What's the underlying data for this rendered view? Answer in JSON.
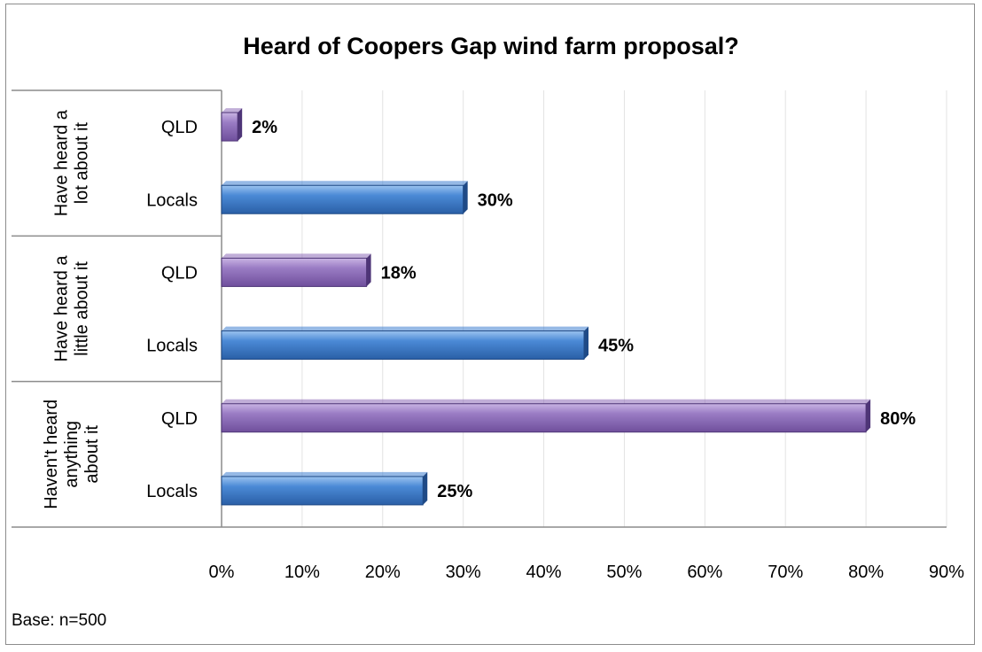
{
  "chart_data": {
    "type": "bar",
    "orientation": "horizontal",
    "title": "Heard of Coopers Gap wind farm proposal?",
    "xlim": [
      0,
      90
    ],
    "x_ticks": [
      "0%",
      "10%",
      "20%",
      "30%",
      "40%",
      "50%",
      "60%",
      "70%",
      "80%",
      "90%"
    ],
    "grid": true,
    "groups": [
      {
        "label_lines": [
          "Have heard a",
          "lot about it"
        ],
        "bars": [
          {
            "category": "QLD",
            "value": 2,
            "label": "2%",
            "color": "#8e6bb8"
          },
          {
            "category": "Locals",
            "value": 30,
            "label": "30%",
            "color": "#3f7fcf"
          }
        ]
      },
      {
        "label_lines": [
          "Have heard a",
          "little about it"
        ],
        "bars": [
          {
            "category": "QLD",
            "value": 18,
            "label": "18%",
            "color": "#8e6bb8"
          },
          {
            "category": "Locals",
            "value": 45,
            "label": "45%",
            "color": "#3f7fcf"
          }
        ]
      },
      {
        "label_lines": [
          "Haven't heard",
          "anything",
          "about it"
        ],
        "bars": [
          {
            "category": "QLD",
            "value": 80,
            "label": "80%",
            "color": "#8e6bb8"
          },
          {
            "category": "Locals",
            "value": 25,
            "label": "25%",
            "color": "#3f7fcf"
          }
        ]
      }
    ],
    "footnote": "Base: n=500"
  }
}
